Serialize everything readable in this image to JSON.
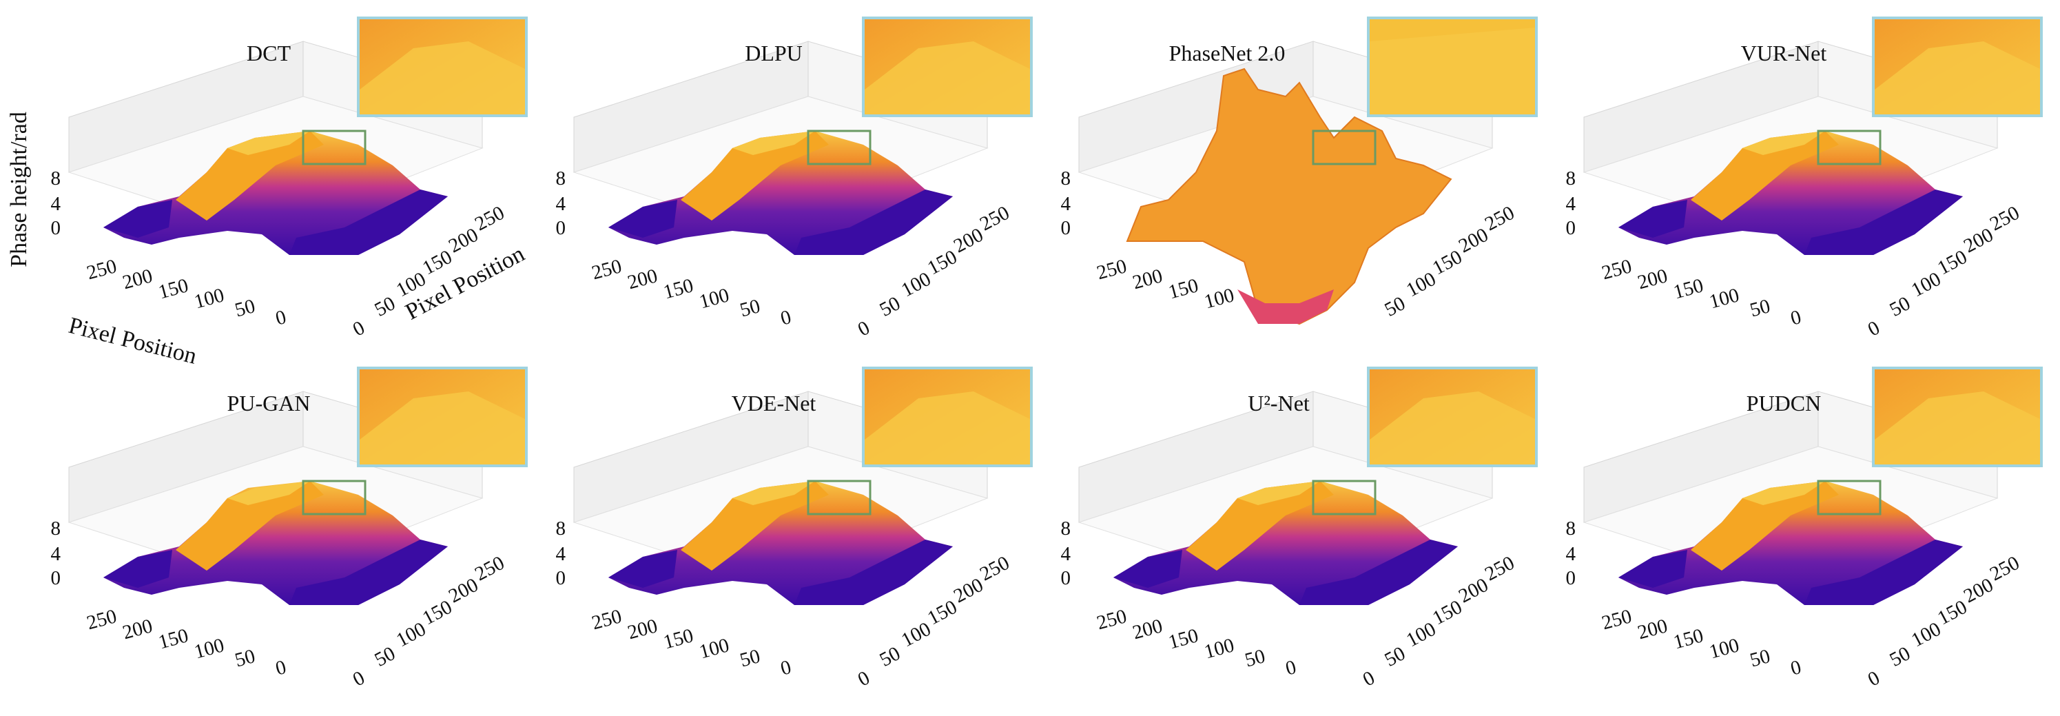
{
  "figure": {
    "y_axis_label": "Phase height/rad",
    "x_axis_label": "Pixel Position",
    "y_axis_label_2": "Pixel Position"
  },
  "colors": {
    "low": "#3a0ca3",
    "mid": "#c2378a",
    "high": "#f5a623",
    "peak": "#f7c744",
    "inset_border": "#9fd3e0",
    "roi_box": "#6a9a63",
    "pane": "#efefef"
  },
  "chart_data": [
    {
      "type": "surface",
      "title": "DCT",
      "zlabel": "Phase height/rad",
      "xlabel": "Pixel Position",
      "ylabel": "Pixel Position",
      "zticks": [
        "0",
        "4",
        "8"
      ],
      "xticks": [
        "250",
        "200",
        "150",
        "100",
        "50",
        "0"
      ],
      "yticks": [
        "0",
        "50",
        "100",
        "150",
        "200",
        "250"
      ],
      "zlim": [
        0,
        8
      ],
      "variant": "smooth"
    },
    {
      "type": "surface",
      "title": "DLPU",
      "zticks": [
        "0",
        "4",
        "8"
      ],
      "xticks": [
        "250",
        "200",
        "150",
        "100",
        "50",
        "0"
      ],
      "yticks": [
        "0",
        "50",
        "100",
        "150",
        "200",
        "250"
      ],
      "zlim": [
        0,
        8
      ],
      "variant": "smooth"
    },
    {
      "type": "surface",
      "title": "PhaseNet 2.0",
      "zticks": [
        "0",
        "4",
        "8"
      ],
      "xticks": [
        "250",
        "200",
        "150",
        "100"
      ],
      "yticks": [
        "50",
        "100",
        "150",
        "200",
        "250"
      ],
      "zlim": [
        0,
        8
      ],
      "variant": "noisy"
    },
    {
      "type": "surface",
      "title": "VUR-Net",
      "zticks": [
        "0",
        "4",
        "8"
      ],
      "xticks": [
        "250",
        "200",
        "150",
        "100",
        "50",
        "0"
      ],
      "yticks": [
        "0",
        "50",
        "100",
        "150",
        "200",
        "250"
      ],
      "zlim": [
        0,
        8
      ],
      "variant": "smooth"
    },
    {
      "type": "surface",
      "title": "PU-GAN",
      "zticks": [
        "0",
        "4",
        "8"
      ],
      "xticks": [
        "250",
        "200",
        "150",
        "100",
        "50",
        "0"
      ],
      "yticks": [
        "0",
        "50",
        "100",
        "150",
        "200",
        "250"
      ],
      "zlim": [
        0,
        8
      ],
      "variant": "rough"
    },
    {
      "type": "surface",
      "title": "VDE-Net",
      "zticks": [
        "0",
        "4",
        "8"
      ],
      "xticks": [
        "250",
        "200",
        "150",
        "100",
        "50",
        "0"
      ],
      "yticks": [
        "0",
        "50",
        "100",
        "150",
        "200",
        "250"
      ],
      "zlim": [
        0,
        8
      ],
      "variant": "smooth"
    },
    {
      "type": "surface",
      "title": "U²-Net",
      "zticks": [
        "0",
        "4",
        "8"
      ],
      "xticks": [
        "250",
        "200",
        "150",
        "100",
        "50",
        "0"
      ],
      "yticks": [
        "0",
        "50",
        "100",
        "150",
        "200",
        "250"
      ],
      "zlim": [
        0,
        8
      ],
      "variant": "smooth"
    },
    {
      "type": "surface",
      "title": "PUDCN",
      "zticks": [
        "0",
        "4",
        "8"
      ],
      "xticks": [
        "250",
        "200",
        "150",
        "100",
        "50",
        "0"
      ],
      "yticks": [
        "0",
        "50",
        "100",
        "150",
        "200",
        "250"
      ],
      "zlim": [
        0,
        8
      ],
      "variant": "smooth"
    }
  ]
}
